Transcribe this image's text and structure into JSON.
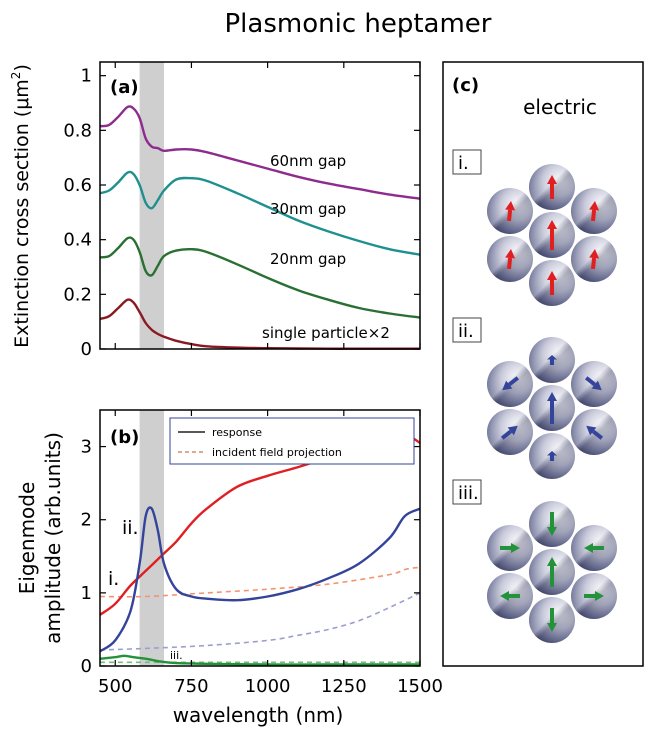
{
  "title": "Plasmonic heptamer",
  "colors": {
    "purple": "#8e2c8e",
    "teal": "#1f9090",
    "dkgreen": "#2a6f33",
    "maroon": "#8a1a22",
    "red": "#e02020",
    "blue": "#34449a",
    "green": "#23923a",
    "lightred": "#f2956f",
    "lightblue": "#9b9fd0",
    "lightgreen": "#6fbf7a",
    "band": "#cfcfcf"
  },
  "panel_a": {
    "label": "(a)",
    "ylabel": "Extinction cross section (μm²)",
    "ylabel_main": "Extinction cross section (μm",
    "ylabel_sup": "2",
    "ylabel_close": ")",
    "yticks": [
      "0",
      "0.2",
      "0.4",
      "0.6",
      "0.8",
      "1"
    ],
    "annotations": [
      "60nm gap",
      "30nm gap",
      "20nm gap",
      "single particle×2"
    ]
  },
  "panel_b": {
    "label": "(b)",
    "ylabel_line1": "Eigenmode",
    "ylabel_line2": "amplitude (arb.units)",
    "xlabel": "wavelength (nm)",
    "yticks": [
      "0",
      "1",
      "2",
      "3"
    ],
    "xticks": [
      "500",
      "750",
      "1000",
      "1250",
      "1500"
    ],
    "legend": [
      "response",
      "incident field projection"
    ],
    "mode_labels": [
      "i.",
      "ii.",
      "iii."
    ]
  },
  "panel_c": {
    "label": "(c)",
    "heading": "electric",
    "modes": [
      "i.",
      "ii.",
      "iii."
    ]
  },
  "chart_data": [
    {
      "type": "line",
      "title": "",
      "xlabel": "",
      "ylabel": "Extinction cross section (μm²)",
      "xlim": [
        450,
        1500
      ],
      "ylim": [
        0,
        1.05
      ],
      "shaded_band": [
        580,
        660
      ],
      "series": [
        {
          "name": "60nm gap",
          "color": "#8e2c8e",
          "x": [
            450,
            480,
            510,
            540,
            560,
            580,
            600,
            620,
            640,
            660,
            700,
            750,
            800,
            900,
            1000,
            1100,
            1200,
            1300,
            1400,
            1500
          ],
          "y": [
            0.815,
            0.82,
            0.85,
            0.885,
            0.88,
            0.845,
            0.77,
            0.74,
            0.735,
            0.725,
            0.73,
            0.73,
            0.72,
            0.69,
            0.66,
            0.63,
            0.605,
            0.585,
            0.565,
            0.55
          ]
        },
        {
          "name": "30nm gap",
          "color": "#1f9090",
          "x": [
            450,
            480,
            510,
            540,
            560,
            580,
            600,
            620,
            640,
            660,
            700,
            750,
            800,
            900,
            1000,
            1100,
            1200,
            1300,
            1400,
            1500
          ],
          "y": [
            0.57,
            0.58,
            0.61,
            0.645,
            0.64,
            0.6,
            0.535,
            0.515,
            0.545,
            0.58,
            0.62,
            0.625,
            0.615,
            0.57,
            0.52,
            0.47,
            0.43,
            0.395,
            0.365,
            0.345
          ]
        },
        {
          "name": "20nm gap",
          "color": "#2a6f33",
          "x": [
            450,
            480,
            510,
            540,
            560,
            580,
            600,
            620,
            640,
            660,
            700,
            750,
            800,
            900,
            1000,
            1100,
            1200,
            1300,
            1400,
            1500
          ],
          "y": [
            0.335,
            0.34,
            0.37,
            0.405,
            0.4,
            0.355,
            0.285,
            0.27,
            0.305,
            0.34,
            0.36,
            0.365,
            0.355,
            0.31,
            0.26,
            0.215,
            0.18,
            0.15,
            0.13,
            0.115
          ]
        },
        {
          "name": "single particle×2",
          "color": "#8a1a22",
          "x": [
            450,
            480,
            510,
            540,
            560,
            580,
            600,
            620,
            640,
            660,
            700,
            750,
            800,
            900,
            1000,
            1100,
            1200,
            1300,
            1400,
            1500
          ],
          "y": [
            0.11,
            0.12,
            0.15,
            0.18,
            0.17,
            0.135,
            0.095,
            0.07,
            0.055,
            0.045,
            0.03,
            0.018,
            0.01,
            0.005,
            0.003,
            0.002,
            0.001,
            0.001,
            0.001,
            0.001
          ]
        }
      ]
    },
    {
      "type": "line",
      "title": "",
      "xlabel": "wavelength (nm)",
      "ylabel": "Eigenmode amplitude (arb.units)",
      "xlim": [
        450,
        1500
      ],
      "ylim": [
        0,
        3.5
      ],
      "shaded_band": [
        580,
        660
      ],
      "series": [
        {
          "mode": "i.",
          "style": "solid",
          "color": "#e02020",
          "x": [
            450,
            500,
            550,
            600,
            650,
            700,
            750,
            800,
            900,
            1000,
            1100,
            1200,
            1300,
            1400,
            1450,
            1500
          ],
          "y": [
            0.7,
            0.85,
            1.1,
            1.3,
            1.5,
            1.7,
            1.95,
            2.15,
            2.45,
            2.6,
            2.72,
            2.85,
            2.98,
            3.13,
            3.17,
            3.05
          ]
        },
        {
          "mode": "ii.",
          "style": "solid",
          "color": "#34449a",
          "x": [
            450,
            500,
            550,
            580,
            600,
            620,
            640,
            660,
            700,
            750,
            800,
            900,
            1000,
            1100,
            1200,
            1300,
            1400,
            1450,
            1500
          ],
          "y": [
            0.2,
            0.35,
            0.75,
            1.4,
            2.05,
            2.15,
            1.85,
            1.4,
            1.05,
            0.95,
            0.92,
            0.9,
            0.95,
            1.05,
            1.2,
            1.4,
            1.75,
            2.05,
            2.15
          ]
        },
        {
          "mode": "iii.",
          "style": "solid",
          "color": "#23923a",
          "x": [
            450,
            500,
            530,
            560,
            600,
            650,
            700,
            800,
            1000,
            1200,
            1400,
            1500
          ],
          "y": [
            0.1,
            0.12,
            0.14,
            0.12,
            0.1,
            0.06,
            0.04,
            0.03,
            0.02,
            0.02,
            0.02,
            0.02
          ]
        },
        {
          "mode": "i.",
          "style": "dashed",
          "color": "#f2956f",
          "x": [
            450,
            600,
            800,
            1000,
            1200,
            1400,
            1450,
            1500
          ],
          "y": [
            0.95,
            0.95,
            1.0,
            1.05,
            1.12,
            1.25,
            1.32,
            1.35
          ]
        },
        {
          "mode": "ii.",
          "style": "dashed",
          "color": "#9b9fd0",
          "x": [
            450,
            600,
            800,
            1000,
            1100,
            1200,
            1300,
            1400,
            1500
          ],
          "y": [
            0.22,
            0.24,
            0.28,
            0.35,
            0.42,
            0.5,
            0.62,
            0.8,
            1.0
          ]
        },
        {
          "mode": "iii.",
          "style": "dashed",
          "color": "#6fbf7a",
          "x": [
            450,
            600,
            800,
            1000,
            1200,
            1500
          ],
          "y": [
            0.05,
            0.05,
            0.05,
            0.05,
            0.05,
            0.05
          ]
        }
      ]
    }
  ]
}
